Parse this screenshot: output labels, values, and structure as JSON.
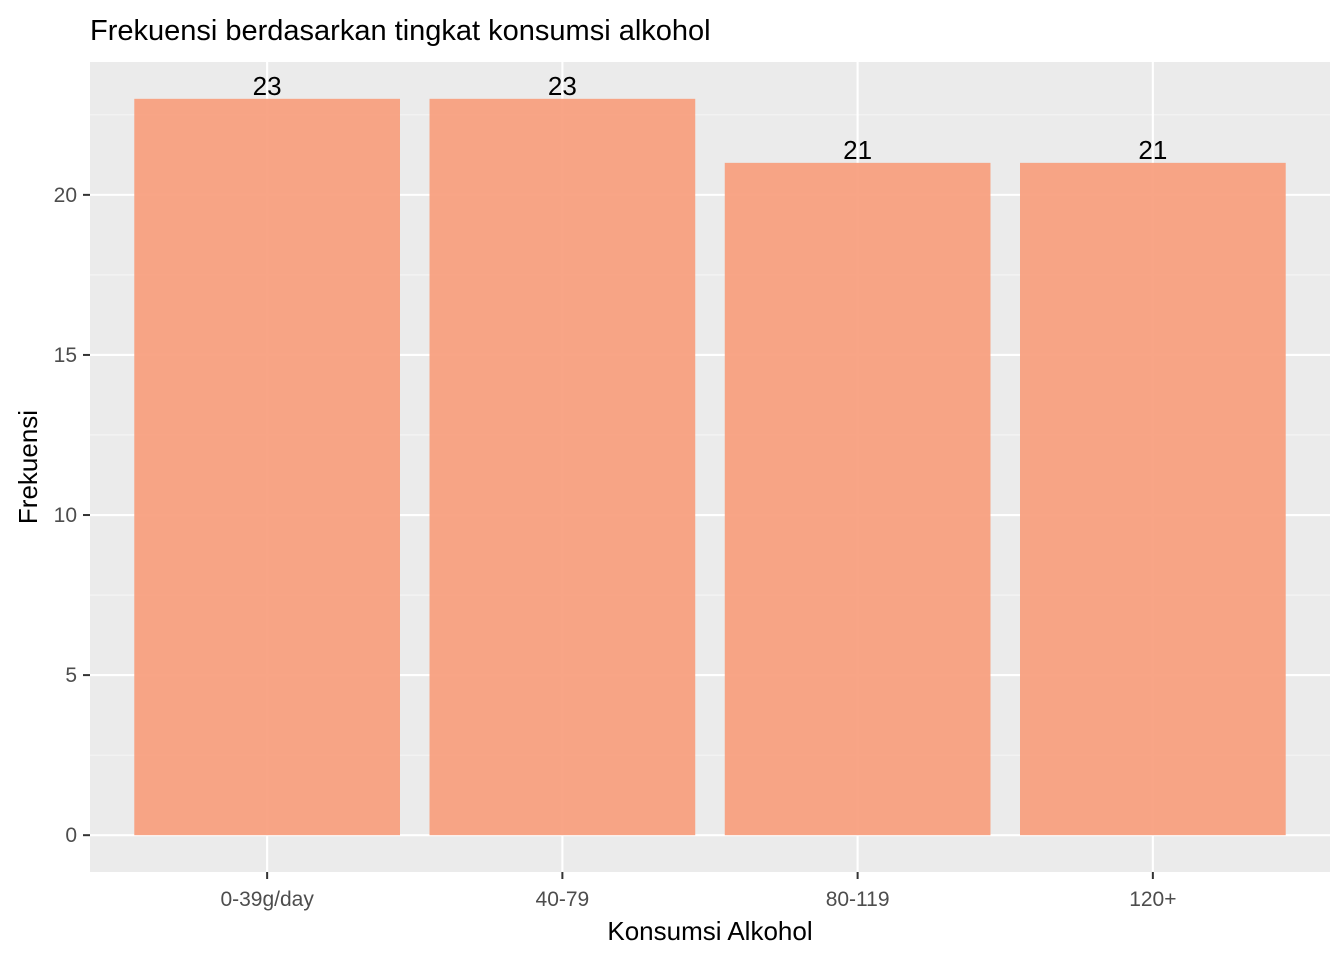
{
  "chart_data": {
    "type": "bar",
    "title": "Frekuensi berdasarkan tingkat konsumsi alkohol",
    "xlabel": "Konsumsi Alkohol",
    "ylabel": "Frekuensi",
    "categories": [
      "0-39g/day",
      "40-79",
      "80-119",
      "120+"
    ],
    "values": [
      23,
      23,
      21,
      21
    ],
    "data_labels": [
      "23",
      "23",
      "21",
      "21"
    ],
    "ylim": [
      -1.15,
      24.15
    ],
    "y_ticks": [
      0,
      5,
      10,
      15,
      20
    ],
    "y_tick_labels": [
      "0",
      "5",
      "10",
      "15",
      "20"
    ],
    "grid": true,
    "legend": "none",
    "colors": {
      "bar_fill": "#F8A07F",
      "panel_background": "#EBEBEB",
      "grid_major": "#FFFFFF",
      "grid_minor": "#F5F5F5",
      "tick_label": "#4D4D4D",
      "title_text": "#000000"
    }
  }
}
